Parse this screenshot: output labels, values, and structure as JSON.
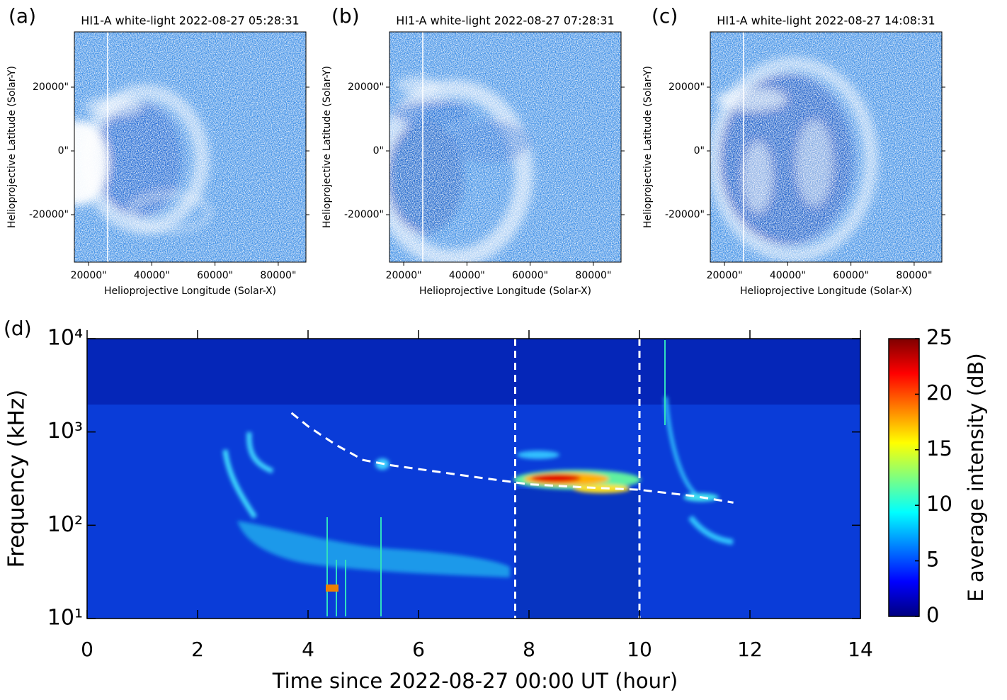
{
  "chart_data": [
    {
      "type": "image",
      "panel_label": "(a)",
      "title": "HI1-A white-light 2022-08-27 05:28:31",
      "xlabel": "Helioprojective Longitude (Solar-X)",
      "ylabel": "Helioprojective Latitude (Solar-Y)",
      "xlim": [
        15500,
        88760
      ],
      "ylim": [
        -34889,
        37333
      ],
      "xticks": [
        {
          "value": 20000,
          "label": "20000\""
        },
        {
          "value": 40000,
          "label": "40000\""
        },
        {
          "value": 60000,
          "label": "60000\""
        },
        {
          "value": 80000,
          "label": "80000\""
        }
      ],
      "yticks": [
        {
          "value": -20000,
          "label": "-20000\""
        },
        {
          "value": 0,
          "label": "0\""
        },
        {
          "value": 20000,
          "label": "20000\""
        }
      ]
    },
    {
      "type": "image",
      "panel_label": "(b)",
      "title": "HI1-A white-light 2022-08-27 07:28:31",
      "xlabel": "Helioprojective Longitude (Solar-X)",
      "ylabel": "Helioprojective Latitude (Solar-Y)",
      "xlim": [
        15500,
        88760
      ],
      "ylim": [
        -34889,
        37333
      ],
      "xticks": [
        {
          "value": 20000,
          "label": "20000\""
        },
        {
          "value": 40000,
          "label": "40000\""
        },
        {
          "value": 60000,
          "label": "60000\""
        },
        {
          "value": 80000,
          "label": "80000\""
        }
      ],
      "yticks": [
        {
          "value": -20000,
          "label": "-20000\""
        },
        {
          "value": 0,
          "label": "0\""
        },
        {
          "value": 20000,
          "label": "20000\""
        }
      ]
    },
    {
      "type": "image",
      "panel_label": "(c)",
      "title": "HI1-A white-light 2022-08-27 14:08:31",
      "xlabel": "Helioprojective Longitude (Solar-X)",
      "ylabel": "Helioprojective Latitude (Solar-Y)",
      "xlim": [
        15500,
        88760
      ],
      "ylim": [
        -34889,
        37333
      ],
      "xticks": [
        {
          "value": 20000,
          "label": "20000\""
        },
        {
          "value": 40000,
          "label": "40000\""
        },
        {
          "value": 60000,
          "label": "60000\""
        },
        {
          "value": 80000,
          "label": "80000\""
        }
      ],
      "yticks": [
        {
          "value": -20000,
          "label": "-20000\""
        },
        {
          "value": 0,
          "label": "0\""
        },
        {
          "value": 20000,
          "label": "20000\""
        }
      ]
    },
    {
      "type": "spectrogram",
      "panel_label": "(d)",
      "xlabel": "Time since 2022-08-27 00:00 UT (hour)",
      "ylabel": "Frequency (kHz)",
      "xlim": [
        0,
        14
      ],
      "xticks": [
        0,
        2,
        4,
        6,
        8,
        10,
        12,
        14
      ],
      "ylim": [
        10,
        10000
      ],
      "log_y": true,
      "yticks": [
        {
          "value": 10,
          "label": "10¹"
        },
        {
          "value": 100,
          "label": "10²"
        },
        {
          "value": 1000,
          "label": "10³"
        },
        {
          "value": 10000,
          "label": "10⁴"
        }
      ],
      "vlines": [
        7.75,
        10
      ],
      "series": [
        {
          "color": "#ffffff",
          "style": "dashed",
          "x": [
            3.7,
            4.0,
            4.5,
            5.0,
            5.5,
            6,
            7,
            8,
            9,
            10,
            11,
            11.7
          ],
          "values": [
            1600,
            1150,
            730,
            500,
            440,
            400,
            330,
            275,
            255,
            240,
            205,
            175
          ]
        }
      ],
      "colorbar": {
        "label": "E average intensity (dB)",
        "colormap": "jet",
        "lim": [
          0,
          25
        ],
        "ticks": [
          0,
          5,
          10,
          15,
          20,
          25
        ]
      }
    }
  ]
}
